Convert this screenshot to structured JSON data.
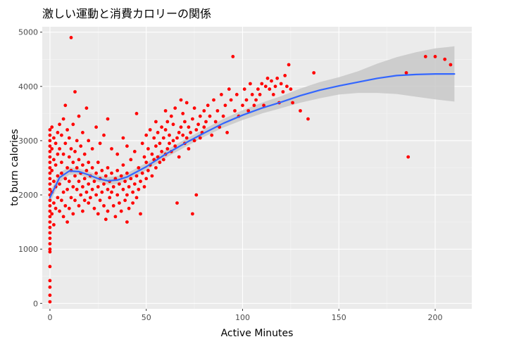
{
  "chart_data": {
    "type": "scatter",
    "title": "激しい運動と消費カロリーの関係",
    "xlabel": "Active Minutes",
    "ylabel": "to burn calories",
    "xlim": [
      -4,
      219
    ],
    "ylim": [
      -100,
      5100
    ],
    "xticks": [
      0,
      50,
      100,
      150,
      200
    ],
    "yticks": [
      0,
      1000,
      2000,
      3000,
      4000,
      5000
    ],
    "xtick_labels": [
      "0",
      "50",
      "100",
      "150",
      "200"
    ],
    "ytick_labels": [
      "0",
      "1000",
      "2000",
      "3000",
      "4000",
      "5000"
    ],
    "grid": true,
    "point_color": "#ff0000",
    "smooth_color": "#3366ff",
    "ribbon_color": "#c8c8c8",
    "panel_color": "#ebebeb",
    "smooth": {
      "x": [
        0,
        5,
        10,
        15,
        20,
        25,
        30,
        35,
        40,
        50,
        60,
        70,
        80,
        90,
        100,
        110,
        120,
        130,
        140,
        150,
        160,
        170,
        180,
        190,
        200,
        210
      ],
      "y": [
        1950,
        2320,
        2440,
        2430,
        2370,
        2300,
        2260,
        2275,
        2330,
        2520,
        2750,
        2950,
        3140,
        3320,
        3470,
        3600,
        3710,
        3830,
        3930,
        4010,
        4080,
        4150,
        4200,
        4220,
        4230,
        4230
      ],
      "lower": [
        1850,
        2230,
        2370,
        2370,
        2310,
        2240,
        2190,
        2200,
        2260,
        2450,
        2680,
        2880,
        3070,
        3240,
        3380,
        3500,
        3600,
        3700,
        3780,
        3850,
        3880,
        3880,
        3860,
        3810,
        3760,
        3720
      ],
      "upper": [
        2050,
        2410,
        2510,
        2490,
        2430,
        2360,
        2330,
        2350,
        2400,
        2590,
        2820,
        3020,
        3210,
        3400,
        3560,
        3700,
        3820,
        3960,
        4080,
        4170,
        4280,
        4420,
        4540,
        4630,
        4700,
        4740
      ]
    },
    "points": [
      [
        0,
        1200
      ],
      [
        0,
        1400
      ],
      [
        0,
        1600
      ],
      [
        0,
        1800
      ],
      [
        0,
        2000
      ],
      [
        0,
        2200
      ],
      [
        0,
        2400
      ],
      [
        0,
        2600
      ],
      [
        0,
        2800
      ],
      [
        0,
        3000
      ],
      [
        0,
        3200
      ],
      [
        0,
        1100
      ],
      [
        0,
        1300
      ],
      [
        0,
        1500
      ],
      [
        0,
        1700
      ],
      [
        0,
        1900
      ],
      [
        0,
        2100
      ],
      [
        0,
        2300
      ],
      [
        0,
        2500
      ],
      [
        0,
        2700
      ],
      [
        0,
        2900
      ],
      [
        0,
        3100
      ],
      [
        0,
        1000
      ],
      [
        0,
        950
      ],
      [
        0,
        680
      ],
      [
        0,
        420
      ],
      [
        0,
        300
      ],
      [
        0,
        150
      ],
      [
        0,
        30
      ],
      [
        1,
        1650
      ],
      [
        1,
        2050
      ],
      [
        1,
        2450
      ],
      [
        1,
        2850
      ],
      [
        1,
        3250
      ],
      [
        2,
        1850
      ],
      [
        2,
        2250
      ],
      [
        2,
        2650
      ],
      [
        2,
        3050
      ],
      [
        2,
        1450
      ],
      [
        3,
        2150
      ],
      [
        3,
        2550
      ],
      [
        3,
        2950
      ],
      [
        3,
        1750
      ],
      [
        4,
        2350
      ],
      [
        4,
        2750
      ],
      [
        4,
        1950
      ],
      [
        4,
        3150
      ],
      [
        5,
        2850
      ],
      [
        5,
        2200
      ],
      [
        5,
        1700
      ],
      [
        5,
        3300
      ],
      [
        6,
        2600
      ],
      [
        6,
        1900
      ],
      [
        6,
        3100
      ],
      [
        6,
        2400
      ],
      [
        7,
        2050
      ],
      [
        7,
        2750
      ],
      [
        7,
        1600
      ],
      [
        7,
        3400
      ],
      [
        8,
        2300
      ],
      [
        8,
        2950
      ],
      [
        8,
        1800
      ],
      [
        8,
        3650
      ],
      [
        9,
        2500
      ],
      [
        9,
        2100
      ],
      [
        9,
        3200
      ],
      [
        9,
        1500
      ],
      [
        10,
        2700
      ],
      [
        10,
        2250
      ],
      [
        10,
        3050
      ],
      [
        10,
        1750
      ],
      [
        11,
        2450
      ],
      [
        11,
        1950
      ],
      [
        11,
        2850
      ],
      [
        11,
        4900
      ],
      [
        12,
        2150
      ],
      [
        12,
        2600
      ],
      [
        12,
        3300
      ],
      [
        12,
        1650
      ],
      [
        13,
        2350
      ],
      [
        13,
        2800
      ],
      [
        13,
        1900
      ],
      [
        13,
        3900
      ],
      [
        14,
        2500
      ],
      [
        14,
        2100
      ],
      [
        14,
        3000
      ],
      [
        15,
        2650
      ],
      [
        15,
        2250
      ],
      [
        15,
        1800
      ],
      [
        15,
        3450
      ],
      [
        16,
        2400
      ],
      [
        16,
        2000
      ],
      [
        16,
        2900
      ],
      [
        17,
        2550
      ],
      [
        17,
        2150
      ],
      [
        17,
        3150
      ],
      [
        17,
        1700
      ],
      [
        18,
        2300
      ],
      [
        18,
        1900
      ],
      [
        18,
        2750
      ],
      [
        19,
        2450
      ],
      [
        19,
        2050
      ],
      [
        19,
        3600
      ],
      [
        20,
        2200
      ],
      [
        20,
        2600
      ],
      [
        20,
        1850
      ],
      [
        20,
        3000
      ],
      [
        21,
        2350
      ],
      [
        21,
        1950
      ],
      [
        22,
        2500
      ],
      [
        22,
        2100
      ],
      [
        22,
        2850
      ],
      [
        23,
        2250
      ],
      [
        23,
        1750
      ],
      [
        24,
        2400
      ],
      [
        24,
        2000
      ],
      [
        24,
        3250
      ],
      [
        25,
        2150
      ],
      [
        25,
        2600
      ],
      [
        25,
        1650
      ],
      [
        26,
        2300
      ],
      [
        26,
        1900
      ],
      [
        26,
        2950
      ],
      [
        27,
        2450
      ],
      [
        27,
        2050
      ],
      [
        28,
        2200
      ],
      [
        28,
        1800
      ],
      [
        28,
        3100
      ],
      [
        29,
        2350
      ],
      [
        29,
        1550
      ],
      [
        30,
        2100
      ],
      [
        30,
        2500
      ],
      [
        30,
        1700
      ],
      [
        30,
        3400
      ],
      [
        31,
        2250
      ],
      [
        31,
        1950
      ],
      [
        32,
        2400
      ],
      [
        32,
        2050
      ],
      [
        32,
        2850
      ],
      [
        33,
        2150
      ],
      [
        33,
        1800
      ],
      [
        34,
        2300
      ],
      [
        34,
        1600
      ],
      [
        35,
        2450
      ],
      [
        35,
        2000
      ],
      [
        35,
        2750
      ],
      [
        36,
        2200
      ],
      [
        36,
        1850
      ],
      [
        37,
        2350
      ],
      [
        37,
        1700
      ],
      [
        38,
        2100
      ],
      [
        38,
        2550
      ],
      [
        38,
        3050
      ],
      [
        39,
        2250
      ],
      [
        39,
        1900
      ],
      [
        40,
        2400
      ],
      [
        40,
        2000
      ],
      [
        40,
        2900
      ],
      [
        40,
        1500
      ],
      [
        41,
        2150
      ],
      [
        41,
        1750
      ],
      [
        42,
        2300
      ],
      [
        42,
        2650
      ],
      [
        43,
        2050
      ],
      [
        43,
        1850
      ],
      [
        44,
        2200
      ],
      [
        44,
        2800
      ],
      [
        45,
        2350
      ],
      [
        45,
        1950
      ],
      [
        45,
        3500
      ],
      [
        46,
        2500
      ],
      [
        46,
        2100
      ],
      [
        47,
        2250
      ],
      [
        47,
        1650
      ],
      [
        48,
        2400
      ],
      [
        48,
        2950
      ],
      [
        49,
        2150
      ],
      [
        49,
        2700
      ],
      [
        50,
        2300
      ],
      [
        50,
        2600
      ],
      [
        50,
        3100
      ],
      [
        51,
        2450
      ],
      [
        51,
        2850
      ],
      [
        52,
        2550
      ],
      [
        52,
        3200
      ],
      [
        53,
        2350
      ],
      [
        53,
        2750
      ],
      [
        54,
        2650
      ],
      [
        54,
        3050
      ],
      [
        55,
        2500
      ],
      [
        55,
        2900
      ],
      [
        55,
        3350
      ],
      [
        56,
        2700
      ],
      [
        56,
        3150
      ],
      [
        57,
        2600
      ],
      [
        57,
        2950
      ],
      [
        58,
        2800
      ],
      [
        58,
        3250
      ],
      [
        59,
        2650
      ],
      [
        59,
        3050
      ],
      [
        60,
        2750
      ],
      [
        60,
        3200
      ],
      [
        60,
        3550
      ],
      [
        61,
        2850
      ],
      [
        61,
        3350
      ],
      [
        62,
        2950
      ],
      [
        62,
        3100
      ],
      [
        63,
        2800
      ],
      [
        63,
        3450
      ],
      [
        64,
        3000
      ],
      [
        64,
        3300
      ],
      [
        65,
        2900
      ],
      [
        65,
        3600
      ],
      [
        66,
        3050
      ],
      [
        66,
        1850
      ],
      [
        67,
        3150
      ],
      [
        67,
        2700
      ],
      [
        68,
        3250
      ],
      [
        68,
        3750
      ],
      [
        69,
        3100
      ],
      [
        69,
        3500
      ],
      [
        70,
        2950
      ],
      [
        70,
        3350
      ],
      [
        71,
        3050
      ],
      [
        71,
        3700
      ],
      [
        72,
        2850
      ],
      [
        72,
        3250
      ],
      [
        73,
        3150
      ],
      [
        74,
        3400
      ],
      [
        74,
        1650
      ],
      [
        75,
        3000
      ],
      [
        75,
        3600
      ],
      [
        76,
        3200
      ],
      [
        76,
        2000
      ],
      [
        77,
        3300
      ],
      [
        78,
        3450
      ],
      [
        78,
        3050
      ],
      [
        79,
        3150
      ],
      [
        80,
        3550
      ],
      [
        80,
        3250
      ],
      [
        81,
        3350
      ],
      [
        82,
        3650
      ],
      [
        83,
        3450
      ],
      [
        84,
        3100
      ],
      [
        85,
        3750
      ],
      [
        86,
        3350
      ],
      [
        87,
        3550
      ],
      [
        88,
        3250
      ],
      [
        89,
        3850
      ],
      [
        90,
        3450
      ],
      [
        91,
        3650
      ],
      [
        92,
        3150
      ],
      [
        93,
        3950
      ],
      [
        94,
        3750
      ],
      [
        95,
        4550
      ],
      [
        96,
        3550
      ],
      [
        97,
        3850
      ],
      [
        98,
        3450
      ],
      [
        100,
        3650
      ],
      [
        101,
        3950
      ],
      [
        102,
        3750
      ],
      [
        103,
        3550
      ],
      [
        104,
        4050
      ],
      [
        105,
        3850
      ],
      [
        106,
        3650
      ],
      [
        107,
        3750
      ],
      [
        108,
        3950
      ],
      [
        109,
        3850
      ],
      [
        110,
        4050
      ],
      [
        111,
        3650
      ],
      [
        112,
        4000
      ],
      [
        113,
        4150
      ],
      [
        114,
        3950
      ],
      [
        115,
        4100
      ],
      [
        116,
        3850
      ],
      [
        117,
        4000
      ],
      [
        118,
        4150
      ],
      [
        119,
        3700
      ],
      [
        120,
        4050
      ],
      [
        121,
        3900
      ],
      [
        122,
        4200
      ],
      [
        123,
        4000
      ],
      [
        124,
        4400
      ],
      [
        125,
        3950
      ],
      [
        126,
        3700
      ],
      [
        130,
        3550
      ],
      [
        134,
        3400
      ],
      [
        137,
        4250
      ],
      [
        185,
        4250
      ],
      [
        186,
        2700
      ],
      [
        195,
        4550
      ],
      [
        200,
        4550
      ],
      [
        205,
        4500
      ],
      [
        208,
        4400
      ]
    ]
  }
}
